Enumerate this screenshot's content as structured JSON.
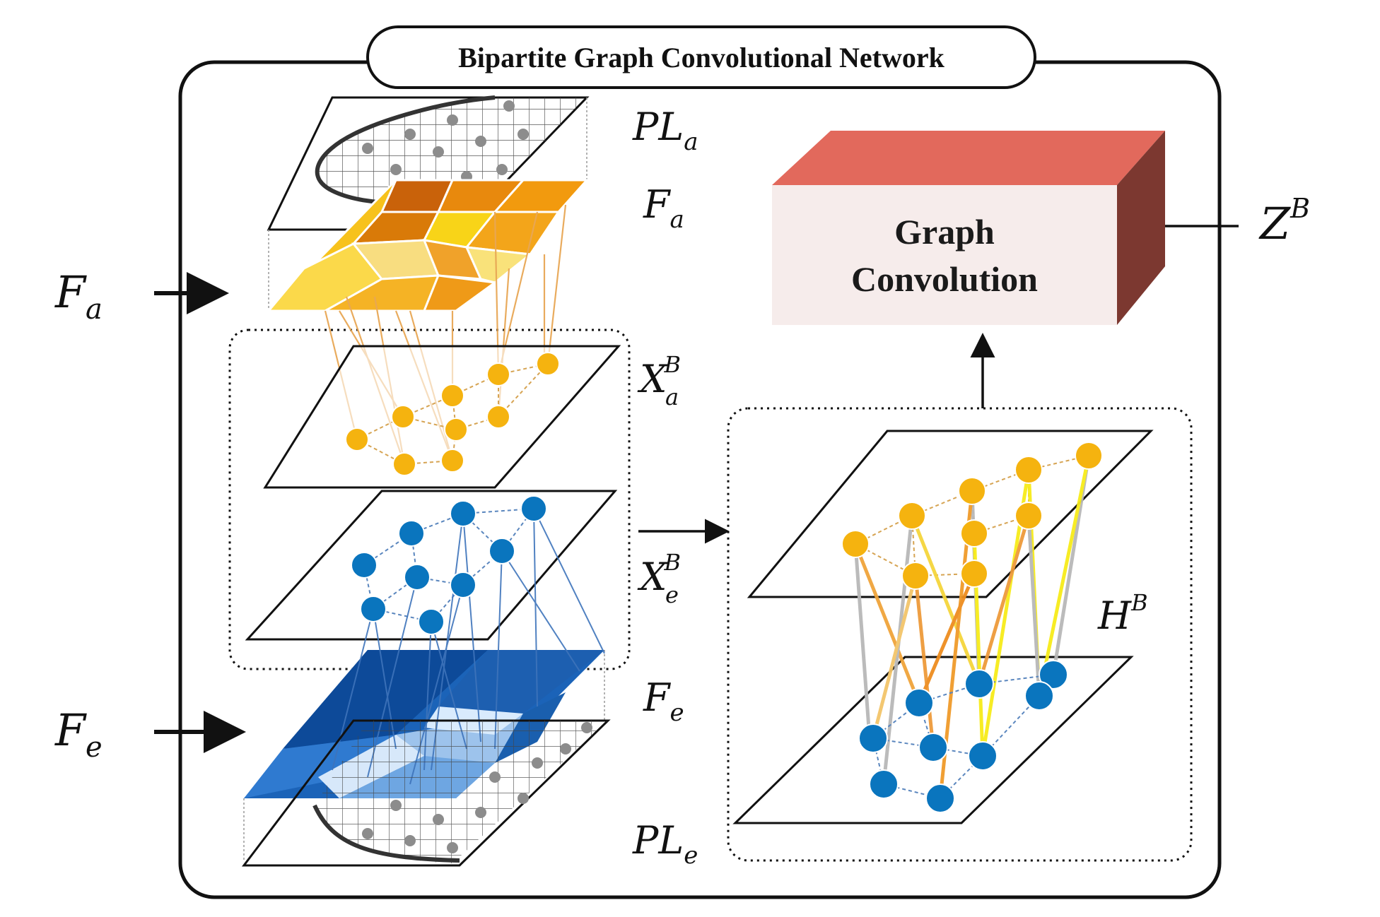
{
  "title": "Bipartite Graph Convolutional Network",
  "graph_conv_box": {
    "line1": "Graph",
    "line2": "Convolution",
    "colors": {
      "top": "#e2695c",
      "front": "#f6eceb",
      "side": "#7c3830"
    }
  },
  "labels": {
    "pl_a": {
      "main": "PL",
      "sub": "a"
    },
    "f_a": {
      "main": "F",
      "sub": "a"
    },
    "x_a": {
      "main": "X",
      "sup": "B",
      "sub": "a"
    },
    "x_e": {
      "main": "X",
      "sup": "B",
      "sub": "e"
    },
    "f_e": {
      "main": "F",
      "sub": "e"
    },
    "pl_e": {
      "main": "PL",
      "sub": "e"
    },
    "h_b": {
      "main": "H",
      "sup": "B"
    },
    "z_b": {
      "main": "Z",
      "sup": "B"
    },
    "input_f_a": {
      "main": "F",
      "sub": "a"
    },
    "input_f_e": {
      "main": "F",
      "sub": "e"
    }
  },
  "colors": {
    "orange_node": "#f5b30f",
    "blue_node": "#0a75be",
    "orange_fill": "#f5a623",
    "blue_fill": "#1f6fc4"
  },
  "icons": {
    "arrow": "arrow-right-icon"
  }
}
